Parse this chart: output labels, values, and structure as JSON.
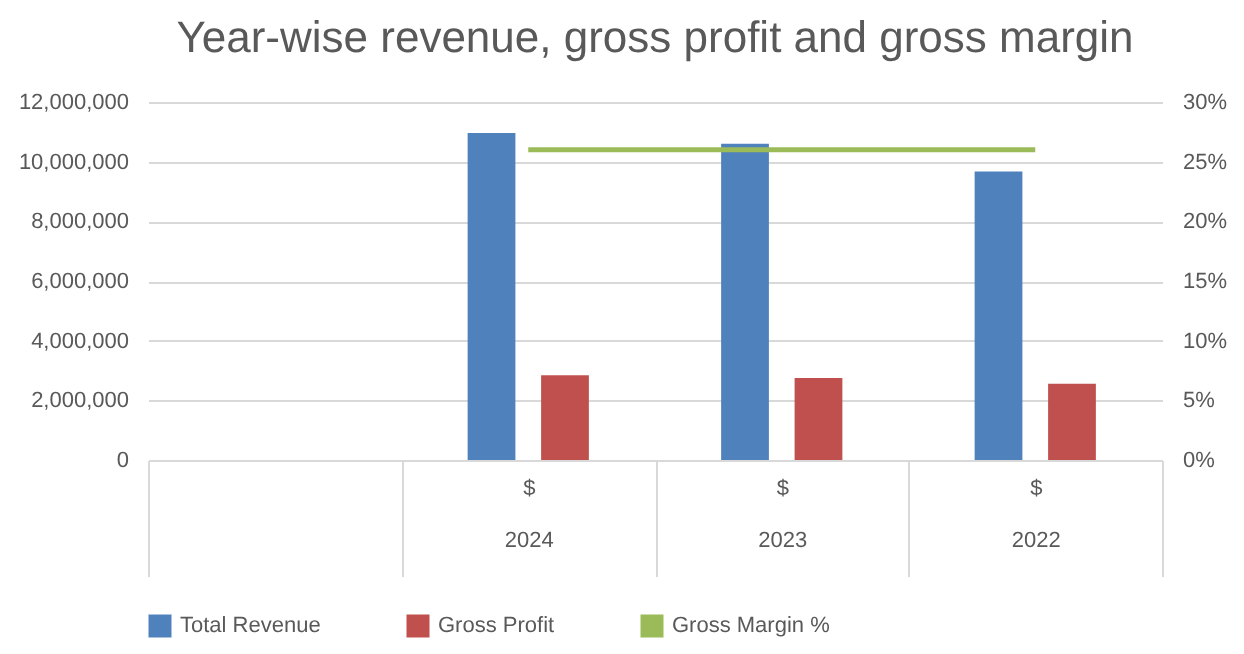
{
  "chart_data": {
    "type": "bar",
    "title": "Year-wise revenue, gross profit and gross margin",
    "categories": [
      null,
      "$\n2024",
      "$\n2023",
      "$\n2022"
    ],
    "series": [
      {
        "name": "Total Revenue",
        "color": "#4f81bd",
        "values": [
          null,
          10960000,
          10600000,
          9670000
        ]
      },
      {
        "name": "Gross Profit",
        "color": "#c0504d",
        "values": [
          null,
          2840000,
          2750000,
          2560000
        ]
      },
      {
        "name": "Gross Margin %",
        "color": "#9bbb59",
        "type": "line",
        "axis": "y2",
        "values": [
          null,
          26,
          26,
          26
        ]
      }
    ],
    "ylim": [
      0,
      12000000
    ],
    "yticks": [
      {
        "value": 0,
        "label": "0"
      },
      {
        "value": 2000000,
        "label": "2,000,000"
      },
      {
        "value": 4000000,
        "label": "4,000,000"
      },
      {
        "value": 6000000,
        "label": "6,000,000"
      },
      {
        "value": 8000000,
        "label": "8,000,000"
      },
      {
        "value": 10000000,
        "label": "10,000,000"
      },
      {
        "value": 12000000,
        "label": "12,000,000"
      }
    ],
    "y2lim": [
      0,
      30
    ],
    "y2ticks": [
      {
        "value": 0,
        "label": "0%"
      },
      {
        "value": 5,
        "label": "5%"
      },
      {
        "value": 10,
        "label": "10%"
      },
      {
        "value": 15,
        "label": "15%"
      },
      {
        "value": 20,
        "label": "20%"
      },
      {
        "value": 25,
        "label": "25%"
      },
      {
        "value": 30,
        "label": "30%"
      }
    ],
    "grid": "y",
    "legend": "bottom"
  }
}
